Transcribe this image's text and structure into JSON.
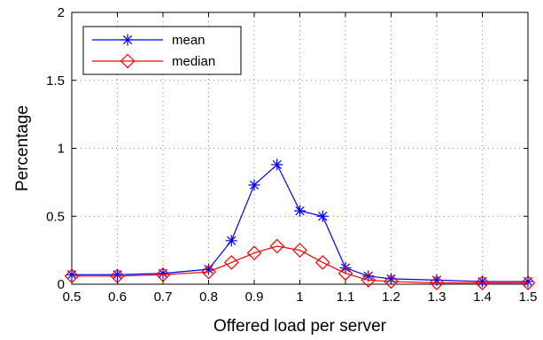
{
  "chart_data": {
    "type": "line",
    "title": "",
    "xlabel": "Offered load per server",
    "ylabel": "Percentage",
    "xlim": [
      0.5,
      1.5
    ],
    "ylim": [
      0,
      2
    ],
    "xticks": [
      "0.5",
      "0.6",
      "0.7",
      "0.8",
      "0.9",
      "1",
      "1.1",
      "1.2",
      "1.3",
      "1.4",
      "1.5"
    ],
    "yticks": [
      "0",
      "0.5",
      "1",
      "1.5",
      "2"
    ],
    "grid": true,
    "legend": "top-left",
    "series": [
      {
        "name": "mean",
        "color": "#0000ff",
        "marker": "asterisk",
        "x": [
          0.5,
          0.6,
          0.7,
          0.8,
          0.85,
          0.9,
          0.95,
          1.0,
          1.05,
          1.1,
          1.15,
          1.2,
          1.3,
          1.4,
          1.5
        ],
        "y": [
          0.07,
          0.07,
          0.08,
          0.11,
          0.32,
          0.73,
          0.88,
          0.54,
          0.5,
          0.12,
          0.06,
          0.04,
          0.03,
          0.02,
          0.02
        ]
      },
      {
        "name": "median",
        "color": "#ff0000",
        "marker": "diamond",
        "x": [
          0.5,
          0.6,
          0.7,
          0.8,
          0.85,
          0.9,
          0.95,
          1.0,
          1.05,
          1.1,
          1.15,
          1.2,
          1.3,
          1.4,
          1.5
        ],
        "y": [
          0.06,
          0.06,
          0.07,
          0.09,
          0.16,
          0.23,
          0.28,
          0.25,
          0.16,
          0.08,
          0.03,
          0.02,
          0.01,
          0.01,
          0.01
        ]
      }
    ]
  }
}
